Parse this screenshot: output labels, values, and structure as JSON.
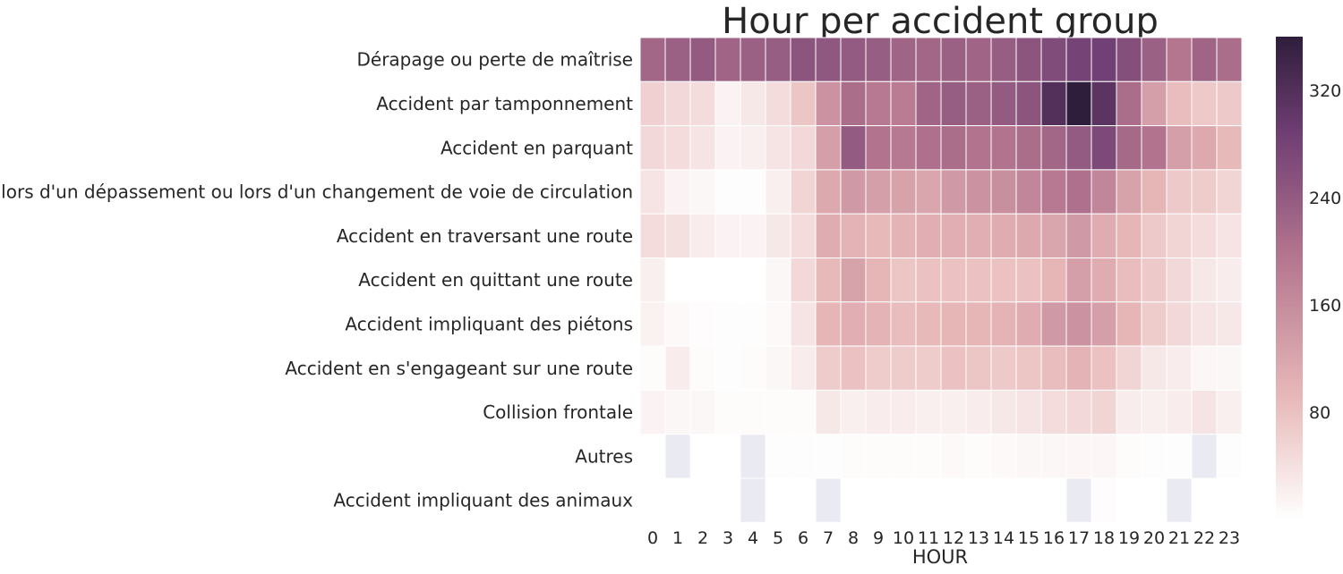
{
  "chart_data": {
    "type": "heatmap",
    "title": "Hour per accident group",
    "xlabel": "HOUR",
    "ylabel": "",
    "x": [
      "0",
      "1",
      "2",
      "3",
      "4",
      "5",
      "6",
      "7",
      "8",
      "9",
      "10",
      "11",
      "12",
      "13",
      "14",
      "15",
      "16",
      "17",
      "18",
      "19",
      "20",
      "21",
      "22",
      "23"
    ],
    "y": [
      "Dérapage ou perte de maîtrise",
      "Accident par tamponnement",
      "Accident en parquant",
      "Accident lors d'un dépassement ou lors d'un changement de voie de circulation",
      "Accident en traversant une route",
      "Accident en quittant une route",
      "Accident impliquant des piétons",
      "Accident en s'engageant sur une route",
      "Collision frontale",
      "Autres",
      "Accident impliquant des animaux"
    ],
    "values": [
      [
        220,
        230,
        240,
        225,
        230,
        235,
        250,
        245,
        240,
        235,
        225,
        220,
        230,
        225,
        235,
        250,
        265,
        280,
        285,
        260,
        230,
        195,
        225,
        210
      ],
      [
        60,
        50,
        45,
        15,
        30,
        45,
        75,
        150,
        210,
        190,
        185,
        225,
        235,
        230,
        240,
        250,
        320,
        360,
        310,
        210,
        130,
        85,
        70,
        70
      ],
      [
        50,
        45,
        35,
        15,
        20,
        35,
        50,
        130,
        240,
        200,
        190,
        205,
        210,
        200,
        200,
        210,
        220,
        240,
        270,
        215,
        200,
        130,
        115,
        90
      ],
      [
        35,
        15,
        10,
        3,
        3,
        20,
        55,
        115,
        140,
        130,
        125,
        120,
        140,
        150,
        155,
        170,
        190,
        205,
        170,
        125,
        95,
        70,
        65,
        55
      ],
      [
        45,
        40,
        25,
        15,
        15,
        30,
        45,
        110,
        100,
        90,
        100,
        105,
        105,
        105,
        110,
        115,
        120,
        140,
        110,
        95,
        70,
        55,
        45,
        35
      ],
      [
        20,
        0,
        0,
        0,
        0,
        10,
        50,
        90,
        125,
        95,
        75,
        80,
        80,
        80,
        80,
        80,
        95,
        130,
        110,
        85,
        70,
        50,
        30,
        25
      ],
      [
        18,
        8,
        4,
        2,
        3,
        8,
        35,
        95,
        105,
        100,
        85,
        90,
        95,
        95,
        100,
        110,
        140,
        150,
        130,
        95,
        65,
        50,
        35,
        30
      ],
      [
        5,
        25,
        5,
        2,
        5,
        10,
        25,
        65,
        80,
        65,
        65,
        65,
        80,
        75,
        70,
        75,
        85,
        100,
        80,
        55,
        30,
        25,
        12,
        10
      ],
      [
        15,
        10,
        10,
        5,
        5,
        5,
        5,
        30,
        20,
        25,
        25,
        20,
        20,
        25,
        30,
        35,
        45,
        50,
        55,
        25,
        20,
        25,
        35,
        20
      ],
      [
        null,
        null,
        null,
        null,
        null,
        2,
        2,
        2,
        5,
        5,
        5,
        5,
        8,
        5,
        8,
        10,
        10,
        12,
        12,
        5,
        2,
        2,
        null,
        2
      ],
      [
        null,
        null,
        null,
        null,
        null,
        null,
        null,
        null,
        null,
        null,
        null,
        null,
        null,
        null,
        null,
        null,
        null,
        null,
        4,
        null,
        null,
        null,
        null,
        null
      ]
    ],
    "masked_cells": [
      [
        9,
        1
      ],
      [
        9,
        4
      ],
      [
        9,
        22
      ],
      [
        10,
        4
      ],
      [
        10,
        7
      ],
      [
        10,
        17
      ],
      [
        10,
        21
      ]
    ],
    "colorbar": {
      "min": 0,
      "max": 360,
      "ticks": [
        80,
        160,
        240,
        320
      ]
    },
    "colors": {
      "low": "#ffffff",
      "mid1": "#e8b9b9",
      "mid2": "#b3748e",
      "mid3": "#6f3e73",
      "high": "#2e1e3b",
      "masked": "#eaeaf2",
      "text": "#262626"
    }
  }
}
